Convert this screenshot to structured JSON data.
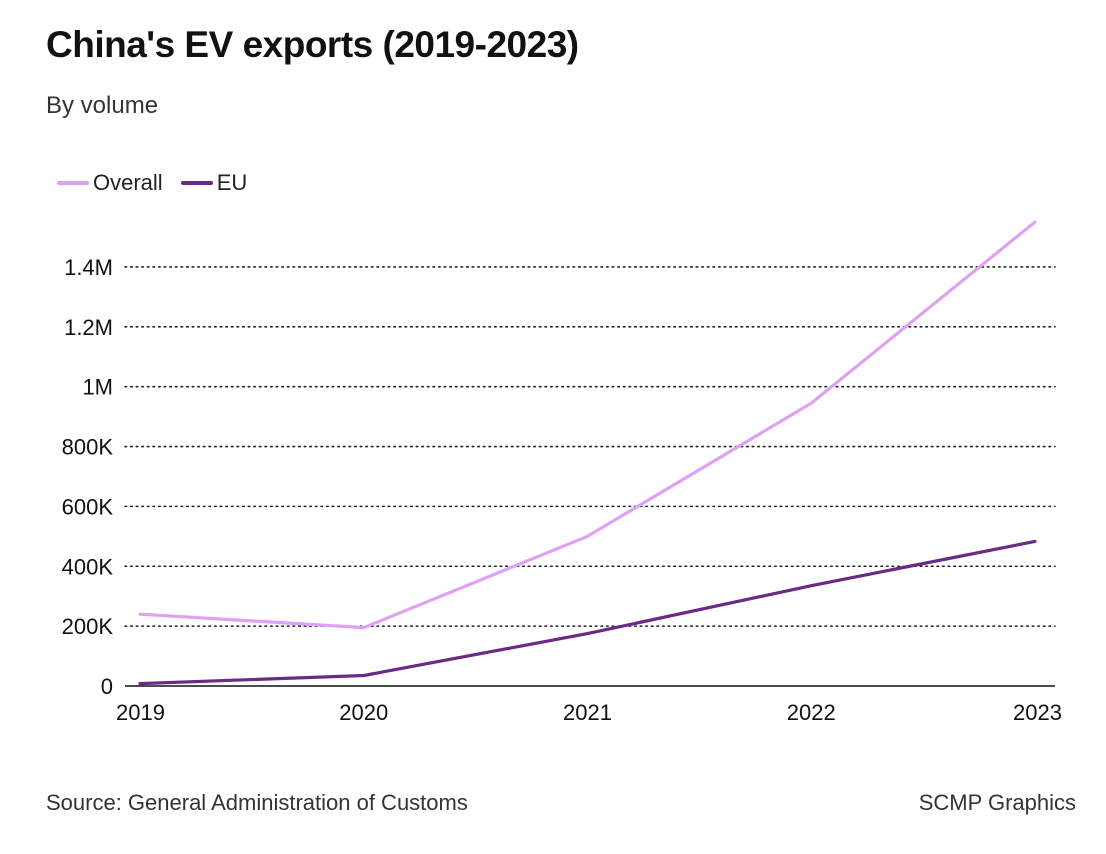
{
  "header": {
    "title": "China's EV exports (2019-2023)",
    "subtitle": "By volume"
  },
  "legend": {
    "items": [
      {
        "label": "Overall",
        "color": "#dfa1f2"
      },
      {
        "label": "EU",
        "color": "#6b2a86"
      }
    ]
  },
  "footer": {
    "source": "Source: General Administration of Customs",
    "credit": "SCMP Graphics"
  },
  "chart_data": {
    "type": "line",
    "title": "China's EV exports (2019-2023)",
    "subtitle": "By volume",
    "xlabel": "",
    "ylabel": "",
    "x": [
      "2019",
      "2020",
      "2021",
      "2022",
      "2023"
    ],
    "series": [
      {
        "name": "Overall",
        "color": "#dfa1f2",
        "values": [
          240000,
          195000,
          500000,
          945000,
          1550000
        ]
      },
      {
        "name": "EU",
        "color": "#6b2a86",
        "values": [
          8000,
          35000,
          175000,
          335000,
          483000
        ]
      }
    ],
    "yticks": [
      0,
      200000,
      400000,
      600000,
      800000,
      1000000,
      1200000,
      1400000
    ],
    "ytick_labels": [
      "0",
      "200K",
      "400K",
      "600K",
      "800K",
      "1M",
      "1.2M",
      "1.4M"
    ],
    "ylim": [
      0,
      1550000
    ],
    "grid": "dotted-horizontal",
    "legend_position": "top-left"
  }
}
